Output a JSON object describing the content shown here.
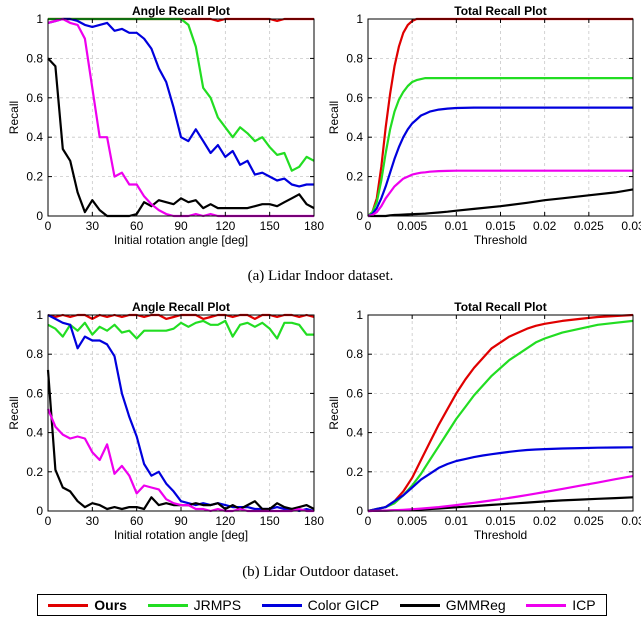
{
  "colors": {
    "ours": "#e00000",
    "jrmps": "#22dd22",
    "color_gicp": "#0000dd",
    "gmmreg": "#000000",
    "icp": "#ee00ee"
  },
  "captions": {
    "a": "(a) Lidar Indoor dataset.",
    "b": "(b) Lidar Outdoor dataset."
  },
  "legend": [
    {
      "key": "ours",
      "label": "Ours",
      "bold": true
    },
    {
      "key": "jrmps",
      "label": "JRMPS",
      "bold": false
    },
    {
      "key": "color_gicp",
      "label": "Color GICP",
      "bold": false
    },
    {
      "key": "gmmreg",
      "label": "GMMReg",
      "bold": false
    },
    {
      "key": "icp",
      "label": "ICP",
      "bold": false
    }
  ],
  "chart_data": [
    {
      "type": "line",
      "title": "Angle Recall Plot",
      "xlabel": "Initial rotation angle [deg]",
      "ylabel": "Recall",
      "xlim": [
        0,
        180
      ],
      "ylim": [
        0,
        1
      ],
      "xticks": [
        0,
        30,
        60,
        90,
        120,
        150,
        180
      ],
      "xtick_labels": [
        "0",
        "30",
        "60",
        "90",
        "120",
        "150",
        "180"
      ],
      "yticks": [
        0,
        0.2,
        0.4,
        0.6,
        0.8,
        1
      ],
      "ytick_labels": [
        "0",
        "0.2",
        "0.4",
        "0.6",
        "0.8",
        "1"
      ],
      "grid": true,
      "x": [
        0,
        5,
        10,
        15,
        20,
        25,
        30,
        35,
        40,
        45,
        50,
        55,
        60,
        65,
        70,
        75,
        80,
        85,
        90,
        95,
        100,
        105,
        110,
        115,
        120,
        125,
        130,
        135,
        140,
        145,
        150,
        155,
        160,
        165,
        170,
        175,
        180
      ],
      "series": [
        {
          "key": "ours",
          "name": "Ours",
          "values": [
            1,
            1,
            1,
            1,
            1,
            1,
            1,
            1,
            1,
            1,
            1,
            1,
            1,
            1,
            1,
            1,
            1,
            1,
            1,
            1,
            1,
            1,
            1,
            0.99,
            1,
            1,
            1,
            1,
            1,
            1,
            1,
            0.99,
            1,
            1,
            1,
            1,
            1
          ]
        },
        {
          "key": "jrmps",
          "name": "JRMPS",
          "values": [
            1,
            1,
            1,
            1,
            1,
            1,
            1,
            1,
            1,
            1,
            1,
            1,
            1,
            1,
            1,
            1,
            1,
            1,
            1,
            0.97,
            0.86,
            0.65,
            0.6,
            0.5,
            0.45,
            0.4,
            0.45,
            0.42,
            0.38,
            0.4,
            0.35,
            0.31,
            0.32,
            0.23,
            0.25,
            0.3,
            0.28
          ]
        },
        {
          "key": "color_gicp",
          "name": "Color GICP",
          "values": [
            0.98,
            0.99,
            1,
            1,
            0.99,
            0.97,
            0.96,
            0.97,
            0.98,
            0.94,
            0.95,
            0.93,
            0.93,
            0.9,
            0.85,
            0.75,
            0.68,
            0.55,
            0.4,
            0.38,
            0.44,
            0.38,
            0.32,
            0.36,
            0.3,
            0.33,
            0.26,
            0.28,
            0.21,
            0.22,
            0.2,
            0.18,
            0.19,
            0.16,
            0.15,
            0.16,
            0.16
          ]
        },
        {
          "key": "gmmreg",
          "name": "GMMReg",
          "values": [
            0.8,
            0.76,
            0.34,
            0.28,
            0.12,
            0.02,
            0.08,
            0.03,
            0.0,
            0.0,
            0.0,
            0.0,
            0.01,
            0.07,
            0.05,
            0.08,
            0.07,
            0.06,
            0.09,
            0.07,
            0.08,
            0.04,
            0.06,
            0.04,
            0.04,
            0.04,
            0.04,
            0.04,
            0.05,
            0.06,
            0.06,
            0.05,
            0.07,
            0.09,
            0.11,
            0.06,
            0.04
          ]
        },
        {
          "key": "icp",
          "name": "ICP",
          "values": [
            0.98,
            0.99,
            1,
            0.98,
            0.97,
            0.9,
            0.65,
            0.4,
            0.4,
            0.2,
            0.22,
            0.16,
            0.16,
            0.1,
            0.06,
            0.03,
            0.01,
            0.0,
            0.0,
            0.0,
            0.01,
            0.0,
            0.01,
            0.0,
            0.0,
            0.0,
            0.0,
            0.0,
            0.0,
            0.0,
            0.0,
            0.0,
            0.0,
            0.0,
            0.0,
            0.0,
            0.0
          ]
        }
      ]
    },
    {
      "type": "line",
      "title": "Total Recall Plot",
      "xlabel": "Threshold",
      "ylabel": "Recall",
      "xlim": [
        0,
        0.03
      ],
      "ylim": [
        0,
        1
      ],
      "xticks": [
        0,
        0.005,
        0.01,
        0.015,
        0.02,
        0.025,
        0.03
      ],
      "xtick_labels": [
        "0",
        "0.005",
        "0.01",
        "0.015",
        "0.02",
        "0.025",
        "0.03"
      ],
      "yticks": [
        0,
        0.2,
        0.4,
        0.6,
        0.8,
        1
      ],
      "ytick_labels": [
        "0",
        "0.2",
        "0.4",
        "0.6",
        "0.8",
        "1"
      ],
      "grid": true,
      "x": [
        0,
        0.0005,
        0.001,
        0.0015,
        0.002,
        0.0025,
        0.003,
        0.0035,
        0.004,
        0.0045,
        0.005,
        0.0055,
        0.006,
        0.0065,
        0.007,
        0.008,
        0.009,
        0.01,
        0.012,
        0.015,
        0.018,
        0.02,
        0.022,
        0.025,
        0.028,
        0.03
      ],
      "series": [
        {
          "key": "ours",
          "name": "Ours",
          "values": [
            0,
            0.02,
            0.09,
            0.25,
            0.45,
            0.62,
            0.76,
            0.86,
            0.93,
            0.97,
            0.99,
            1,
            1,
            1,
            1,
            1,
            1,
            1,
            1,
            1,
            1,
            1,
            1,
            1,
            1,
            1
          ]
        },
        {
          "key": "jrmps",
          "name": "JRMPS",
          "values": [
            0,
            0.02,
            0.07,
            0.18,
            0.32,
            0.44,
            0.53,
            0.59,
            0.63,
            0.66,
            0.68,
            0.69,
            0.695,
            0.7,
            0.7,
            0.7,
            0.7,
            0.7,
            0.7,
            0.7,
            0.7,
            0.7,
            0.7,
            0.7,
            0.7,
            0.7
          ]
        },
        {
          "key": "color_gicp",
          "name": "Color GICP",
          "values": [
            0,
            0.01,
            0.04,
            0.09,
            0.15,
            0.22,
            0.29,
            0.35,
            0.4,
            0.44,
            0.47,
            0.49,
            0.51,
            0.52,
            0.53,
            0.54,
            0.545,
            0.548,
            0.55,
            0.55,
            0.55,
            0.55,
            0.55,
            0.55,
            0.55,
            0.55
          ]
        },
        {
          "key": "gmmreg",
          "name": "GMMReg",
          "values": [
            0,
            0,
            0,
            0,
            0,
            0.003,
            0.005,
            0.006,
            0.007,
            0.008,
            0.009,
            0.01,
            0.011,
            0.012,
            0.014,
            0.018,
            0.022,
            0.027,
            0.036,
            0.05,
            0.067,
            0.08,
            0.09,
            0.105,
            0.12,
            0.135
          ]
        },
        {
          "key": "icp",
          "name": "ICP",
          "values": [
            0,
            0.005,
            0.02,
            0.05,
            0.09,
            0.12,
            0.15,
            0.17,
            0.19,
            0.2,
            0.21,
            0.215,
            0.22,
            0.222,
            0.225,
            0.228,
            0.229,
            0.23,
            0.23,
            0.23,
            0.23,
            0.23,
            0.23,
            0.23,
            0.23,
            0.23
          ]
        }
      ]
    },
    {
      "type": "line",
      "title": "Angle Recall Plot",
      "xlabel": "Initial rotation angle [deg]",
      "ylabel": "Recall",
      "xlim": [
        0,
        180
      ],
      "ylim": [
        0,
        1
      ],
      "xticks": [
        0,
        30,
        60,
        90,
        120,
        150,
        180
      ],
      "xtick_labels": [
        "0",
        "30",
        "60",
        "90",
        "120",
        "150",
        "180"
      ],
      "yticks": [
        0,
        0.2,
        0.4,
        0.6,
        0.8,
        1
      ],
      "ytick_labels": [
        "0",
        "0.2",
        "0.4",
        "0.6",
        "0.8",
        "1"
      ],
      "grid": true,
      "x": [
        0,
        5,
        10,
        15,
        20,
        25,
        30,
        35,
        40,
        45,
        50,
        55,
        60,
        65,
        70,
        75,
        80,
        85,
        90,
        95,
        100,
        105,
        110,
        115,
        120,
        125,
        130,
        135,
        140,
        145,
        150,
        155,
        160,
        165,
        170,
        175,
        180
      ],
      "series": [
        {
          "key": "ours",
          "name": "Ours",
          "values": [
            1,
            0.99,
            1,
            0.99,
            1,
            1,
            0.98,
            1,
            0.99,
            1,
            0.99,
            1,
            1,
            0.99,
            1,
            1,
            0.98,
            0.99,
            1,
            1,
            1,
            0.98,
            0.99,
            1,
            1,
            0.99,
            1,
            1,
            0.98,
            1,
            1,
            0.99,
            1,
            1,
            0.99,
            1,
            0.99
          ]
        },
        {
          "key": "jrmps",
          "name": "JRMPS",
          "values": [
            0.95,
            0.93,
            0.89,
            0.95,
            0.92,
            0.96,
            0.9,
            0.94,
            0.92,
            0.95,
            0.91,
            0.92,
            0.88,
            0.92,
            0.92,
            0.92,
            0.92,
            0.93,
            0.96,
            0.94,
            0.96,
            0.97,
            0.95,
            0.95,
            0.97,
            0.89,
            0.95,
            0.96,
            0.94,
            0.96,
            0.93,
            0.88,
            0.96,
            0.96,
            0.95,
            0.9,
            0.9
          ]
        },
        {
          "key": "color_gicp",
          "name": "Color GICP",
          "values": [
            1,
            0.98,
            0.96,
            0.95,
            0.83,
            0.89,
            0.87,
            0.87,
            0.85,
            0.79,
            0.6,
            0.48,
            0.38,
            0.24,
            0.18,
            0.2,
            0.14,
            0.1,
            0.05,
            0.04,
            0.03,
            0.04,
            0.03,
            0.04,
            0.03,
            0.02,
            0.02,
            0.02,
            0.01,
            0.01,
            0.01,
            0.02,
            0.01,
            0.01,
            0.0,
            0.01,
            0.0
          ]
        },
        {
          "key": "gmmreg",
          "name": "GMMReg",
          "values": [
            0.72,
            0.21,
            0.12,
            0.1,
            0.05,
            0.02,
            0.04,
            0.03,
            0.01,
            0.02,
            0.01,
            0.02,
            0.02,
            0.01,
            0.07,
            0.03,
            0.04,
            0.03,
            0.03,
            0.03,
            0.04,
            0.03,
            0.03,
            0.04,
            0.01,
            0.03,
            0.01,
            0.03,
            0.05,
            0.01,
            0.01,
            0.04,
            0.02,
            0.01,
            0.02,
            0.03,
            0.01
          ]
        },
        {
          "key": "icp",
          "name": "ICP",
          "values": [
            0.52,
            0.43,
            0.39,
            0.37,
            0.38,
            0.37,
            0.3,
            0.26,
            0.34,
            0.19,
            0.23,
            0.18,
            0.09,
            0.13,
            0.12,
            0.11,
            0.06,
            0.04,
            0.03,
            0.03,
            0.01,
            0.01,
            0.0,
            0.01,
            0.0,
            0.0,
            0.01,
            0.0,
            0.0,
            0.0,
            0.0,
            0.0,
            0.0,
            0.0,
            0.01,
            0.0,
            0.0
          ]
        }
      ]
    },
    {
      "type": "line",
      "title": "Total Recall Plot",
      "xlabel": "Threshold",
      "ylabel": "Recall",
      "xlim": [
        0,
        0.03
      ],
      "ylim": [
        0,
        1
      ],
      "xticks": [
        0,
        0.005,
        0.01,
        0.015,
        0.02,
        0.025,
        0.03
      ],
      "xtick_labels": [
        "0",
        "0.005",
        "0.01",
        "0.015",
        "0.02",
        "0.025",
        "0.03"
      ],
      "yticks": [
        0,
        0.2,
        0.4,
        0.6,
        0.8,
        1
      ],
      "ytick_labels": [
        "0",
        "0.2",
        "0.4",
        "0.6",
        "0.8",
        "1"
      ],
      "grid": true,
      "x": [
        0,
        0.001,
        0.002,
        0.003,
        0.004,
        0.005,
        0.006,
        0.007,
        0.008,
        0.009,
        0.01,
        0.011,
        0.012,
        0.013,
        0.014,
        0.015,
        0.016,
        0.017,
        0.018,
        0.019,
        0.02,
        0.022,
        0.024,
        0.026,
        0.028,
        0.03
      ],
      "series": [
        {
          "key": "ours",
          "name": "Ours",
          "values": [
            0,
            0.01,
            0.02,
            0.05,
            0.1,
            0.17,
            0.26,
            0.35,
            0.44,
            0.52,
            0.6,
            0.67,
            0.73,
            0.78,
            0.83,
            0.86,
            0.89,
            0.91,
            0.93,
            0.945,
            0.955,
            0.97,
            0.98,
            0.99,
            0.995,
            1
          ]
        },
        {
          "key": "jrmps",
          "name": "JRMPS",
          "values": [
            0,
            0.01,
            0.02,
            0.04,
            0.08,
            0.13,
            0.19,
            0.26,
            0.33,
            0.4,
            0.47,
            0.53,
            0.59,
            0.64,
            0.69,
            0.73,
            0.77,
            0.8,
            0.83,
            0.86,
            0.88,
            0.91,
            0.93,
            0.95,
            0.96,
            0.97
          ]
        },
        {
          "key": "color_gicp",
          "name": "Color GICP",
          "values": [
            0,
            0.01,
            0.02,
            0.05,
            0.08,
            0.12,
            0.16,
            0.19,
            0.22,
            0.24,
            0.255,
            0.265,
            0.275,
            0.283,
            0.29,
            0.296,
            0.302,
            0.307,
            0.311,
            0.314,
            0.316,
            0.319,
            0.321,
            0.323,
            0.324,
            0.325
          ]
        },
        {
          "key": "gmmreg",
          "name": "GMMReg",
          "values": [
            0,
            0.001,
            0.002,
            0.003,
            0.004,
            0.006,
            0.008,
            0.01,
            0.013,
            0.016,
            0.019,
            0.022,
            0.025,
            0.028,
            0.031,
            0.034,
            0.037,
            0.04,
            0.043,
            0.046,
            0.049,
            0.054,
            0.058,
            0.062,
            0.066,
            0.07
          ]
        },
        {
          "key": "icp",
          "name": "ICP",
          "values": [
            0,
            0.001,
            0.002,
            0.004,
            0.006,
            0.009,
            0.012,
            0.016,
            0.02,
            0.025,
            0.03,
            0.036,
            0.042,
            0.048,
            0.054,
            0.06,
            0.067,
            0.074,
            0.081,
            0.089,
            0.097,
            0.113,
            0.129,
            0.145,
            0.162,
            0.178
          ]
        }
      ]
    }
  ]
}
